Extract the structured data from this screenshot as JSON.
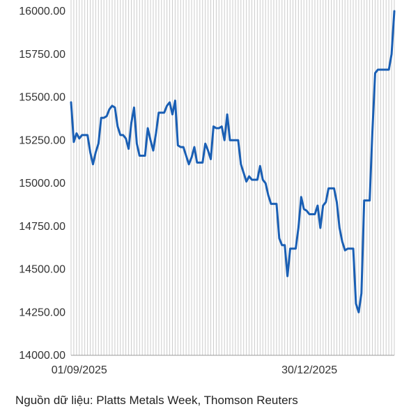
{
  "chart_data": {
    "type": "line",
    "title": "",
    "xlabel": "",
    "ylabel": "",
    "ylim": [
      14000,
      16000
    ],
    "yticks": [
      "14000.00",
      "14250.00",
      "14500.00",
      "14750.00",
      "15000.00",
      "15250.00",
      "15500.00",
      "15750.00",
      "16000.00"
    ],
    "xticks": [
      {
        "label": "01/09/2025",
        "index": 3
      },
      {
        "label": "30/12/2025",
        "index": 87
      }
    ],
    "grid": "vertical",
    "colors": {
      "line": "#1a5fb4",
      "grid": "#cccccc",
      "axis": "#999999"
    },
    "series": [
      {
        "values": [
          15470,
          15240,
          15290,
          15260,
          15280,
          15280,
          15280,
          15180,
          15110,
          15180,
          15230,
          15380,
          15380,
          15390,
          15430,
          15450,
          15440,
          15330,
          15280,
          15280,
          15260,
          15200,
          15350,
          15440,
          15230,
          15160,
          15160,
          15160,
          15320,
          15250,
          15190,
          15290,
          15410,
          15410,
          15410,
          15450,
          15470,
          15400,
          15480,
          15220,
          15210,
          15210,
          15160,
          15110,
          15150,
          15210,
          15120,
          15120,
          15120,
          15230,
          15190,
          15140,
          15330,
          15320,
          15320,
          15330,
          15250,
          15400,
          15250,
          15250,
          15250,
          15250,
          15110,
          15060,
          15010,
          15040,
          15020,
          15020,
          15020,
          15100,
          15020,
          15000,
          14930,
          14880,
          14880,
          14880,
          14680,
          14640,
          14640,
          14460,
          14620,
          14620,
          14620,
          14740,
          14920,
          14850,
          14840,
          14820,
          14820,
          14820,
          14870,
          14740,
          14870,
          14890,
          14970,
          14970,
          14970,
          14890,
          14740,
          14660,
          14610,
          14620,
          14620,
          14620,
          14300,
          14250,
          14360,
          14900,
          14900,
          14900,
          15300,
          15640,
          15660,
          15660,
          15660,
          15660,
          15660,
          15750,
          16000
        ]
      }
    ]
  },
  "source": "Nguồn dữ liệu: Platts Metals Week, Thomson Reuters"
}
